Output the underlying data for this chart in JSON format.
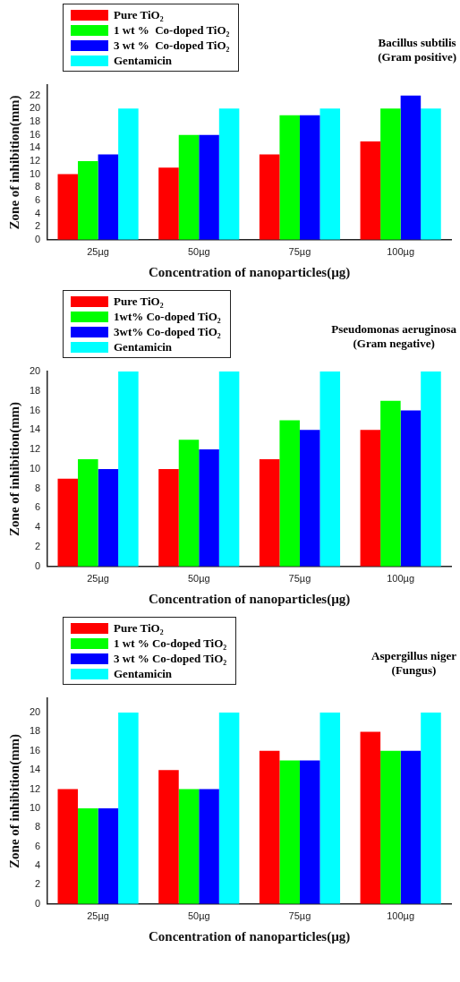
{
  "chart_data": [
    {
      "type": "bar",
      "title": "Bacillus subtilis",
      "subtitle": "(Gram positive)",
      "xlabel": "Concentration of nanoparticles(µg)",
      "ylabel": "Zone of inhibition(mm)",
      "categories": [
        "25µg",
        "50µg",
        "75µg",
        "100µg"
      ],
      "series": [
        {
          "name": "Pure TiO₂",
          "color": "#ff0000",
          "values": [
            10,
            11,
            13,
            15
          ]
        },
        {
          "name": "1 wt %  Co-doped TiO₂",
          "color": "#00ff00",
          "values": [
            12,
            16,
            19,
            20
          ]
        },
        {
          "name": "3 wt %  Co-doped TiO₂",
          "color": "#0000ff",
          "values": [
            13,
            16,
            19,
            22
          ]
        },
        {
          "name": "Gentamicin",
          "color": "#00ffff",
          "values": [
            20,
            20,
            20,
            20
          ]
        }
      ],
      "ylim": [
        0,
        23.6
      ],
      "yticks": [
        0,
        2,
        4,
        6,
        8,
        10,
        12,
        14,
        16,
        18,
        20,
        22
      ],
      "legend": "top left"
    },
    {
      "type": "bar",
      "title": "Pseudomonas aeruginosa",
      "subtitle": "(Gram negative)",
      "xlabel": "Concentration of nanoparticles(µg)",
      "ylabel": "Zone of inhibition(mm)",
      "categories": [
        "25µg",
        "50µg",
        "75µg",
        "100µg"
      ],
      "series": [
        {
          "name": "Pure TiO₂",
          "color": "#ff0000",
          "values": [
            9,
            10,
            11,
            14
          ]
        },
        {
          "name": "1wt% Co-doped TiO₂",
          "color": "#00ff00",
          "values": [
            11,
            13,
            15,
            17
          ]
        },
        {
          "name": "3wt% Co-doped TiO₂",
          "color": "#0000ff",
          "values": [
            10,
            12,
            14,
            16
          ]
        },
        {
          "name": "Gentamicin",
          "color": "#00ffff",
          "values": [
            20,
            20,
            20,
            20
          ]
        }
      ],
      "ylim": [
        0,
        20
      ],
      "yticks": [
        0,
        2,
        4,
        6,
        8,
        10,
        12,
        14,
        16,
        18,
        20
      ],
      "legend": "top left"
    },
    {
      "type": "bar",
      "title": "Aspergillus niger",
      "subtitle": "(Fungus)",
      "xlabel": "Concentration of nanoparticles(µg)",
      "ylabel": "Zone of inhibition(mm)",
      "categories": [
        "25µg",
        "50µg",
        "75µg",
        "100µg"
      ],
      "series": [
        {
          "name": "Pure TiO₂",
          "color": "#ff0000",
          "values": [
            12,
            14,
            16,
            18
          ]
        },
        {
          "name": "1 wt % Co-doped TiO₂",
          "color": "#00ff00",
          "values": [
            10,
            12,
            15,
            16
          ]
        },
        {
          "name": "3 wt % Co-doped TiO₂",
          "color": "#0000ff",
          "values": [
            10,
            12,
            15,
            16
          ]
        },
        {
          "name": "Gentamicin",
          "color": "#00ffff",
          "values": [
            20,
            20,
            20,
            20
          ]
        }
      ],
      "ylim": [
        0,
        21.5
      ],
      "yticks": [
        0,
        2,
        4,
        6,
        8,
        10,
        12,
        14,
        16,
        18,
        20
      ],
      "legend": "top left"
    }
  ]
}
